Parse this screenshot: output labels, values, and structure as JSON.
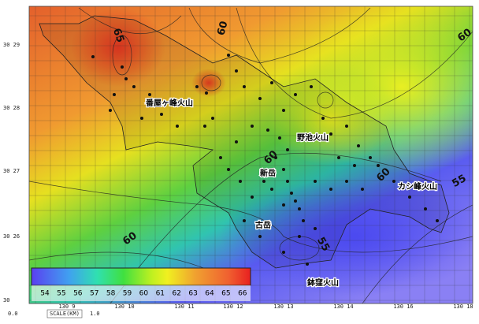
{
  "map": {
    "lat_labels": [
      "30 29",
      "30 28",
      "30 27",
      "30 26",
      "30"
    ],
    "lon_labels": [
      "130 9",
      "130 10",
      "130 11",
      "130 12",
      "130 13",
      "130 14",
      "130 16",
      "130 18"
    ],
    "places": [
      "番屋ヶ峰火山",
      "野池火山",
      "新岳",
      "カシ峰火山",
      "古岳",
      "鉢窪火山"
    ],
    "contour_labels": [
      "65",
      "60",
      "60",
      "60",
      "60",
      "55",
      "60",
      "55"
    ],
    "colorbar": {
      "ticks": [
        54,
        55,
        56,
        57,
        58,
        59,
        60,
        61,
        62,
        63,
        64,
        65,
        66
      ]
    },
    "scale": {
      "start": "0.0",
      "label": "SCALE(KM)",
      "end": "1.0"
    }
  }
}
